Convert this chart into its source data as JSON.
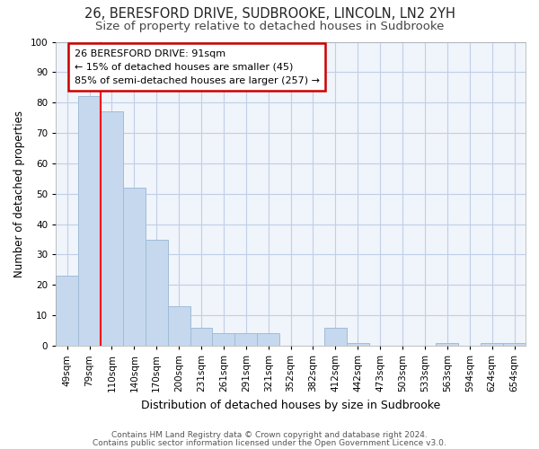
{
  "title1": "26, BERESFORD DRIVE, SUDBROOKE, LINCOLN, LN2 2YH",
  "title2": "Size of property relative to detached houses in Sudbrooke",
  "xlabel": "Distribution of detached houses by size in Sudbrooke",
  "ylabel": "Number of detached properties",
  "categories": [
    "49sqm",
    "79sqm",
    "110sqm",
    "140sqm",
    "170sqm",
    "200sqm",
    "231sqm",
    "261sqm",
    "291sqm",
    "321sqm",
    "352sqm",
    "382sqm",
    "412sqm",
    "442sqm",
    "473sqm",
    "503sqm",
    "533sqm",
    "563sqm",
    "594sqm",
    "624sqm",
    "654sqm"
  ],
  "values": [
    23,
    82,
    77,
    52,
    35,
    13,
    6,
    4,
    4,
    4,
    0,
    0,
    6,
    1,
    0,
    0,
    0,
    1,
    0,
    1,
    1
  ],
  "bar_color": "#c5d8ee",
  "bar_edge_color": "#a0bcd8",
  "bar_width": 1.0,
  "ylim": [
    0,
    100
  ],
  "red_line_x": 1.5,
  "annotation_text": "26 BERESFORD DRIVE: 91sqm\n← 15% of detached houses are smaller (45)\n85% of semi-detached houses are larger (257) →",
  "annotation_box_color": "#ffffff",
  "annotation_box_edge_color": "#cc0000",
  "footnote1": "Contains HM Land Registry data © Crown copyright and database right 2024.",
  "footnote2": "Contains public sector information licensed under the Open Government Licence v3.0.",
  "bg_color": "#ffffff",
  "plot_bg_color": "#f0f4fb",
  "grid_color": "#c0cfe8",
  "title_fontsize": 10.5,
  "subtitle_fontsize": 9.5,
  "tick_fontsize": 7.5,
  "ylabel_fontsize": 8.5,
  "xlabel_fontsize": 9,
  "annotation_fontsize": 8,
  "footnote_fontsize": 6.5
}
